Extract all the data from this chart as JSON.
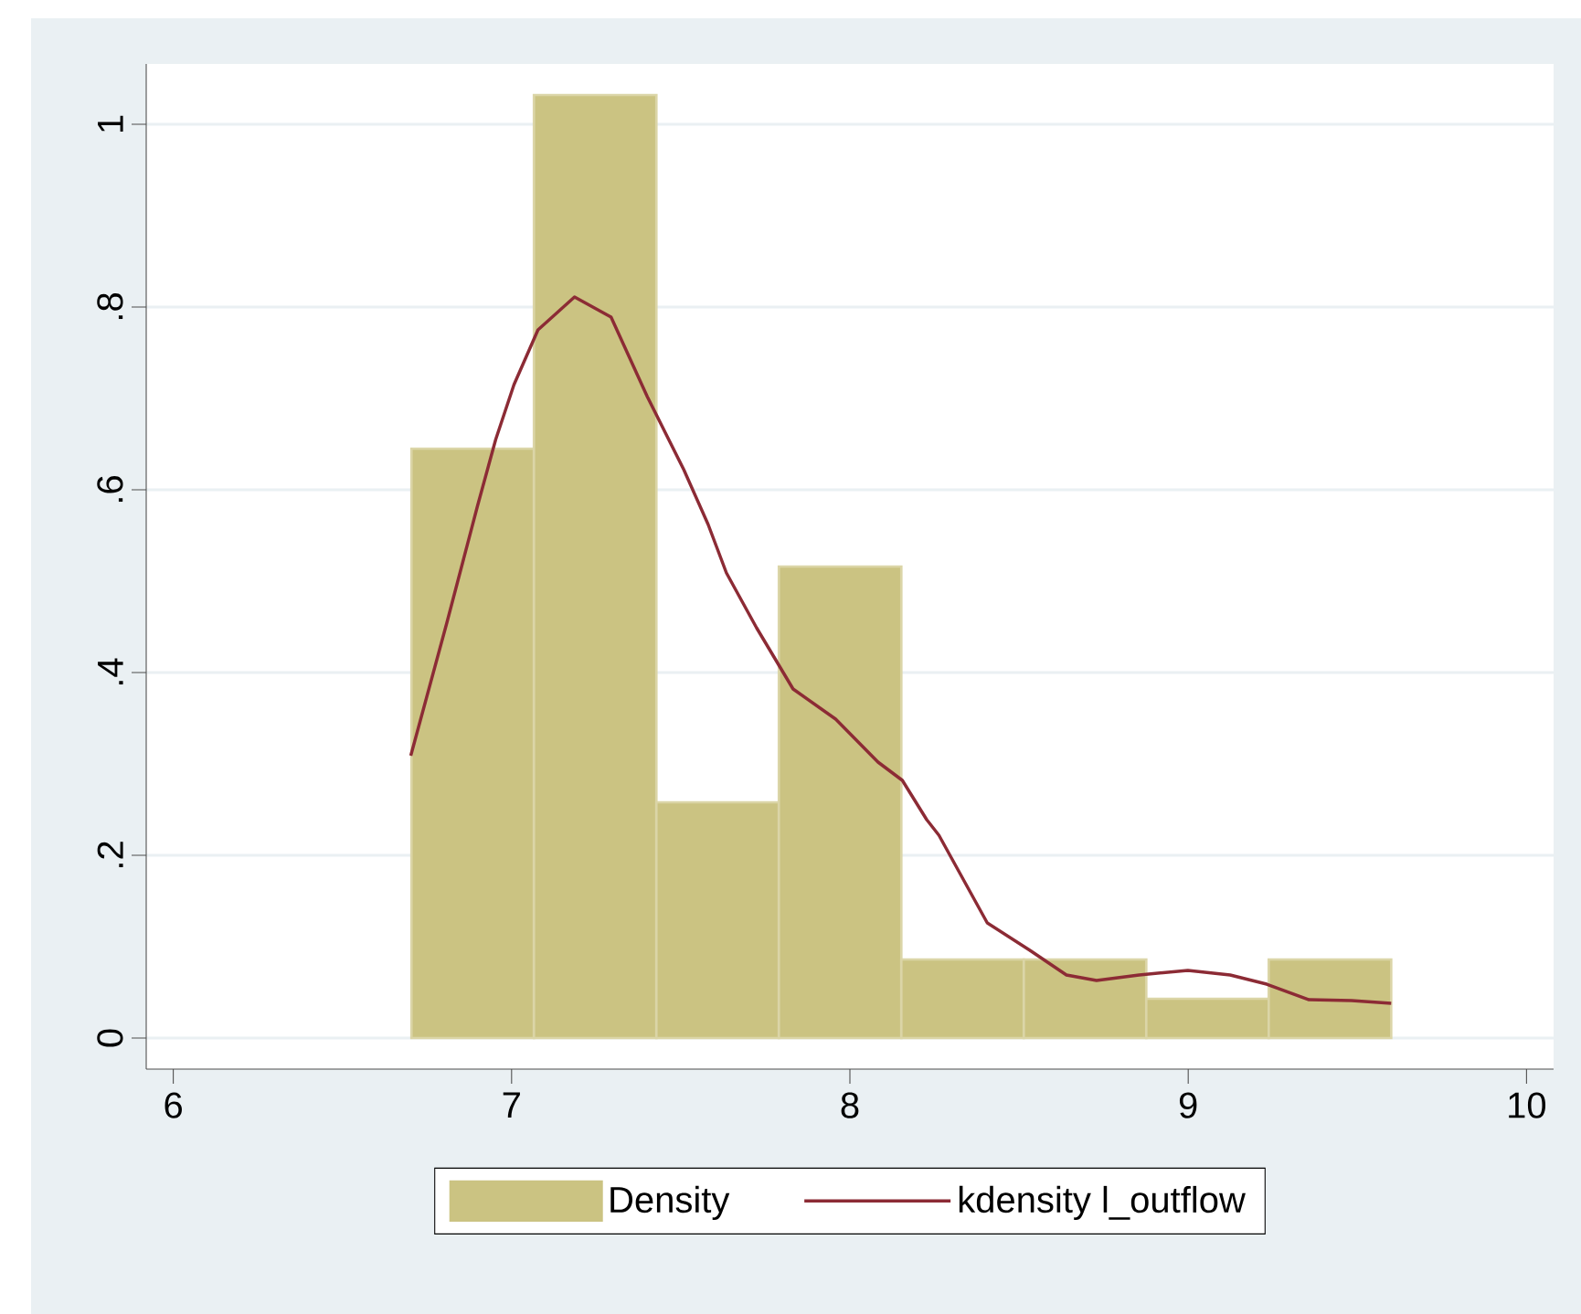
{
  "chart_data": {
    "type": "histogram",
    "xlim": [
      5.92,
      10.08
    ],
    "ylim": [
      -0.034,
      1.066
    ],
    "xticks": [
      6,
      7,
      8,
      9,
      10
    ],
    "yticks": [
      0,
      {
        "value": 0.2,
        "label": ".2"
      },
      {
        "value": 0.4,
        "label": ".4"
      },
      {
        "value": 0.6,
        "label": ".6"
      },
      {
        "value": 0.8,
        "label": ".8"
      },
      1
    ],
    "grid": "y",
    "legend": "bottom",
    "marker": "none",
    "line_style": "solid",
    "series": [
      {
        "name": "Density",
        "color": "#cbc382",
        "bins": [
          6.704,
          7.066,
          7.428,
          7.79,
          8.152,
          8.514,
          8.876,
          9.238,
          9.6
        ],
        "values": [
          0.645,
          1.032,
          0.258,
          0.516,
          0.086,
          0.086,
          0.043,
          0.086
        ]
      },
      {
        "type": "line",
        "name": "kdensity l_outflow",
        "color": "#8c2b35",
        "x": [
          6.702,
          6.809,
          6.899,
          6.953,
          7.007,
          7.078,
          7.186,
          7.294,
          7.401,
          7.509,
          7.581,
          7.635,
          7.724,
          7.832,
          7.958,
          8.083,
          8.155,
          8.227,
          8.263,
          8.406,
          8.532,
          8.64,
          8.729,
          8.855,
          8.999,
          9.124,
          9.232,
          9.357,
          9.483,
          9.6
        ],
        "values": [
          0.309,
          0.455,
          0.582,
          0.655,
          0.715,
          0.775,
          0.811,
          0.789,
          0.702,
          0.622,
          0.562,
          0.509,
          0.449,
          0.382,
          0.349,
          0.302,
          0.282,
          0.239,
          0.222,
          0.126,
          0.096,
          0.069,
          0.063,
          0.069,
          0.074,
          0.069,
          0.059,
          0.042,
          0.041,
          0.038
        ]
      }
    ]
  }
}
